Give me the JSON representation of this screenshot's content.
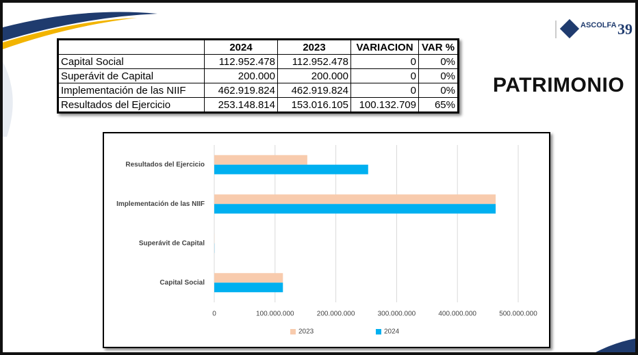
{
  "title": "PATRIMONIO",
  "logo": {
    "name": "ASCOLFA",
    "number": "39"
  },
  "table": {
    "columns": [
      "2024",
      "2023",
      "VARIACION",
      "VAR %"
    ],
    "rows": [
      [
        "Capital Social",
        "112.952.478",
        "112.952.478",
        "0",
        "0%"
      ],
      [
        "Superávit de Capital",
        "200.000",
        "200.000",
        "0",
        "0%"
      ],
      [
        "Implementación de las NIIF",
        "462.919.824",
        "462.919.824",
        "0",
        "0%"
      ],
      [
        "Resultados del Ejercicio",
        "253.148.814",
        "153.016.105",
        "100.132.709",
        "65%"
      ]
    ]
  },
  "chart_data": {
    "type": "hbar",
    "categories": [
      "Capital Social",
      "Superávit de Capital",
      "Implementación de las NIIF",
      "Resultados del Ejercicio"
    ],
    "series": [
      {
        "name": "2023",
        "color": "#f8cbad",
        "values": [
          112952478,
          200000,
          462919824,
          153016105
        ]
      },
      {
        "name": "2024",
        "color": "#00b0f0",
        "values": [
          112952478,
          200000,
          462919824,
          253148814
        ]
      }
    ],
    "xlim": [
      0,
      500000000
    ],
    "xticks": [
      0,
      {
        "value": 100000000,
        "label": "100.000.000"
      },
      {
        "value": 200000000,
        "label": "200.000.000"
      },
      {
        "value": 300000000,
        "label": "300.000.000"
      },
      {
        "value": 400000000,
        "label": "400.000.000"
      },
      {
        "value": 500000000,
        "label": "500.000.000"
      }
    ],
    "grid": true,
    "legend": "bottom"
  }
}
